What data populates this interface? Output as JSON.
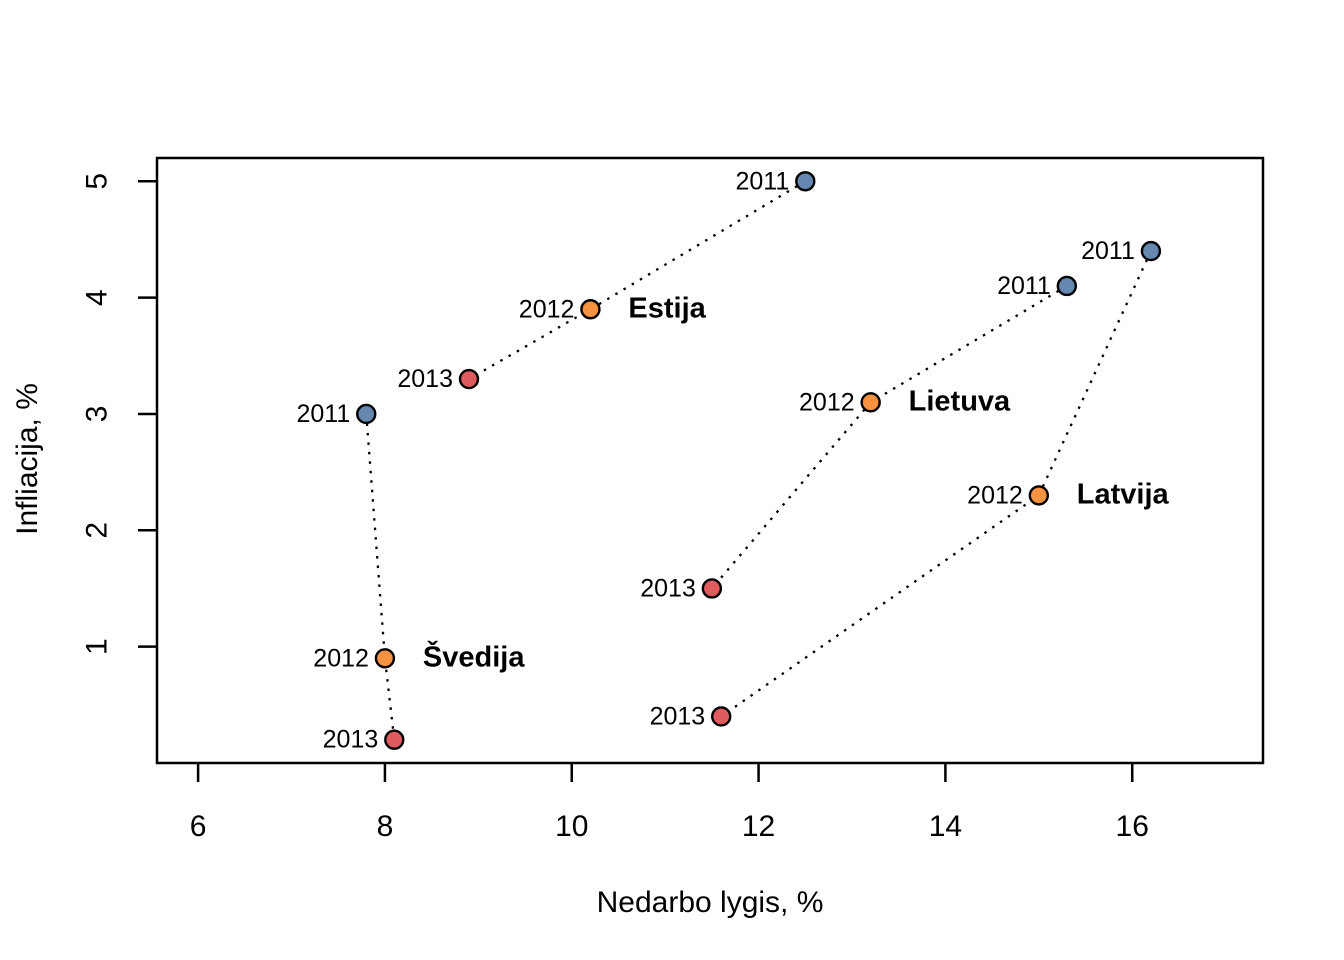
{
  "chart_data": {
    "type": "scatter",
    "title": "",
    "xlabel": "Nedarbo lygis, %",
    "ylabel": "Infliacija, %",
    "xlim": [
      5.56,
      17.4
    ],
    "ylim": [
      0,
      5.2
    ],
    "xticks": [
      6,
      8,
      10,
      12,
      14,
      16
    ],
    "yticks": [
      1,
      2,
      3,
      4,
      5
    ],
    "grid": false,
    "legend_position": "none",
    "connector_style": "dotted",
    "axis_color": "#000000",
    "point_stroke": "#000000",
    "country_label_anchor_year": "2012",
    "years": [
      {
        "year": "2011",
        "label_color": "#7BA3D4",
        "fill": "#6488AF"
      },
      {
        "year": "2012",
        "label_color": "#F79C4D",
        "fill": "#F79240"
      },
      {
        "year": "2013",
        "label_color": "#ED7172",
        "fill": "#DF5B5D"
      }
    ],
    "series": [
      {
        "name": "Estija",
        "points": [
          {
            "year": "2011",
            "x": 12.5,
            "y": 5.0
          },
          {
            "year": "2012",
            "x": 10.2,
            "y": 3.9
          },
          {
            "year": "2013",
            "x": 8.9,
            "y": 3.3
          }
        ]
      },
      {
        "name": "Lietuva",
        "points": [
          {
            "year": "2011",
            "x": 15.3,
            "y": 4.1
          },
          {
            "year": "2012",
            "x": 13.2,
            "y": 3.1
          },
          {
            "year": "2013",
            "x": 11.5,
            "y": 1.5
          }
        ]
      },
      {
        "name": "Latvija",
        "points": [
          {
            "year": "2011",
            "x": 16.2,
            "y": 4.4
          },
          {
            "year": "2012",
            "x": 15.0,
            "y": 2.3
          },
          {
            "year": "2013",
            "x": 11.6,
            "y": 0.4
          }
        ]
      },
      {
        "name": "Švedija",
        "points": [
          {
            "year": "2011",
            "x": 7.8,
            "y": 3.0
          },
          {
            "year": "2012",
            "x": 8.0,
            "y": 0.9
          },
          {
            "year": "2013",
            "x": 8.1,
            "y": 0.2
          }
        ]
      }
    ]
  }
}
